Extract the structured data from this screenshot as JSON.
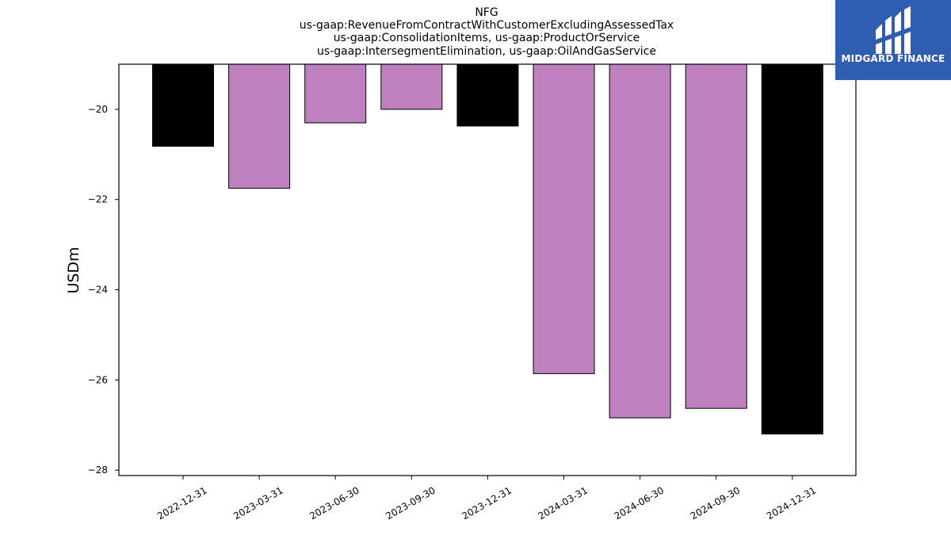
{
  "title_lines": [
    "NFG",
    "us-gaap:RevenueFromContractWithCustomerExcludingAssessedTax",
    "us-gaap:ConsolidationItems, us-gaap:ProductOrService",
    "us-gaap:IntersegmentElimination, us-gaap:OilAndGasService"
  ],
  "logo": {
    "text": "MIDGARD FINANCE",
    "icon": "midgard-logo-icon",
    "background": "#2f5db0"
  },
  "colors": {
    "q4_bar": "#000000",
    "other_bar": "#bf80bf",
    "bar_edge": "#000000"
  },
  "chart_data": {
    "type": "bar",
    "title": "NFG\nus-gaap:RevenueFromContractWithCustomerExcludingAssessedTax\nus-gaap:ConsolidationItems, us-gaap:ProductOrService\nus-gaap:IntersegmentElimination, us-gaap:OilAndGasService",
    "xlabel": "",
    "ylabel": "USDm",
    "categories": [
      "2022-12-31",
      "2023-03-31",
      "2023-06-30",
      "2023-09-30",
      "2023-12-31",
      "2024-03-31",
      "2024-06-30",
      "2024-09-30",
      "2024-12-31"
    ],
    "values": [
      -20.82,
      -21.75,
      -20.3,
      -20.0,
      -20.37,
      -25.86,
      -26.84,
      -26.63,
      -27.2
    ],
    "bar_colors": [
      "#000000",
      "#bf80bf",
      "#bf80bf",
      "#bf80bf",
      "#000000",
      "#bf80bf",
      "#bf80bf",
      "#bf80bf",
      "#000000"
    ],
    "ylim": [
      -28.12,
      -19.0
    ],
    "yticks": [
      -20,
      -22,
      -24,
      -26,
      -28
    ],
    "ytick_labels": [
      "−20",
      "−22",
      "−24",
      "−26",
      "−28"
    ],
    "grid": false,
    "legend": "none"
  }
}
